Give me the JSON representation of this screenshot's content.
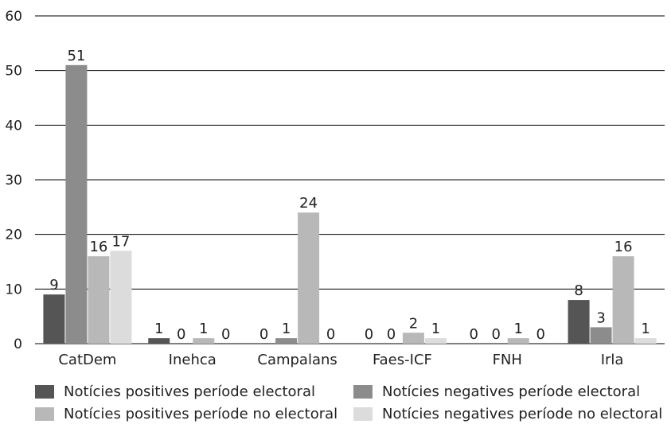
{
  "chart_data": {
    "type": "bar",
    "title": "",
    "xlabel": "",
    "ylabel": "",
    "ylim": [
      0,
      60
    ],
    "yticks": [
      0,
      10,
      20,
      30,
      40,
      50,
      60
    ],
    "grid": true,
    "legend_placement": "bottom",
    "categories": [
      "CatDem",
      "Inehca",
      "Campalans",
      "Faes-ICF",
      "FNH",
      "Irla"
    ],
    "series": [
      {
        "name": "Notícies positives període electoral",
        "color": "#555555",
        "values": [
          9,
          1,
          0,
          0,
          0,
          8
        ]
      },
      {
        "name": "Notícies negatives període electoral",
        "color": "#8c8c8c",
        "values": [
          51,
          0,
          1,
          0,
          0,
          3
        ]
      },
      {
        "name": "Notícies positives període no electoral",
        "color": "#b8b8b8",
        "values": [
          16,
          1,
          24,
          2,
          1,
          16
        ]
      },
      {
        "name": "Notícies negatives període no electoral",
        "color": "#dcdcdc",
        "values": [
          17,
          0,
          0,
          1,
          0,
          1
        ]
      }
    ]
  }
}
